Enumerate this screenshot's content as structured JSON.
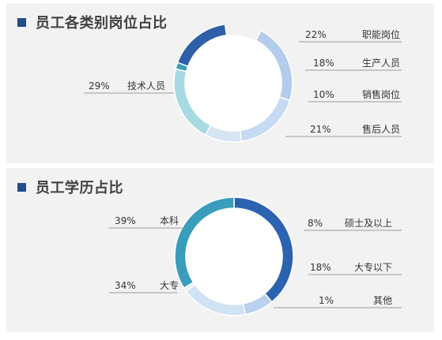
{
  "colors": {
    "title_marker": "#1f4e8c",
    "panel_bg": "#f2f2f2"
  },
  "chart_data": [
    {
      "type": "pie",
      "style": "donut",
      "title": "员工各类别岗位占比",
      "slices": [
        {
          "label": "职能岗位",
          "value": 22,
          "value_text": "22%",
          "color": "#b4cceb"
        },
        {
          "label": "生产人员",
          "value": 18,
          "value_text": "18%",
          "color": "#c6daf2"
        },
        {
          "label": "销售岗位",
          "value": 10,
          "value_text": "10%",
          "color": "#d6e4f3"
        },
        {
          "label": "售后人员",
          "value": 21,
          "value_text": "21%",
          "color": "#a7dae2"
        },
        {
          "label": "技术人员",
          "value": 29,
          "value_text": "29%",
          "color": "#3a9dbb"
        }
      ],
      "extra_arc_color": "#2e5fa8"
    },
    {
      "type": "pie",
      "style": "donut",
      "title": "员工学历占比",
      "slices": [
        {
          "label": "本科",
          "value": 39,
          "value_text": "39%",
          "color": "#2c63b0"
        },
        {
          "label": "硕士及以上",
          "value": 8,
          "value_text": "8%",
          "color": "#b9d0ee"
        },
        {
          "label": "大专以下",
          "value": 18,
          "value_text": "18%",
          "color": "#d1e2f5"
        },
        {
          "label": "其他",
          "value": 1,
          "value_text": "1%",
          "color": "#e8eff8"
        },
        {
          "label": "大专",
          "value": 34,
          "value_text": "34%",
          "color": "#3a9dbb"
        }
      ]
    }
  ]
}
